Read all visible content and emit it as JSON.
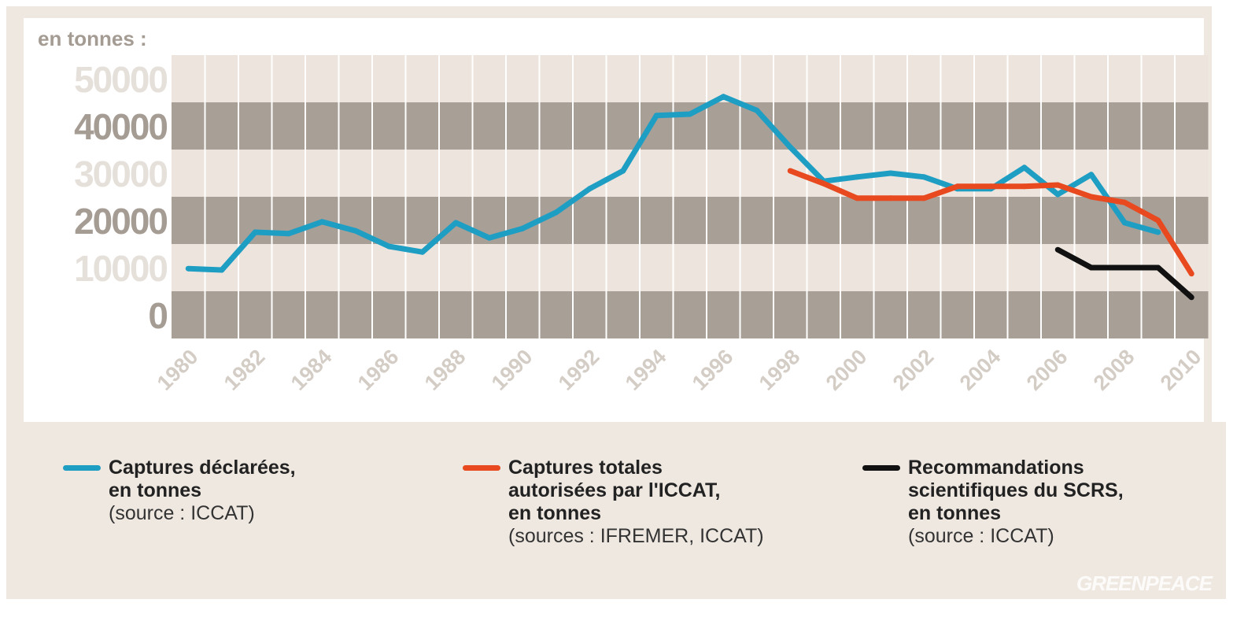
{
  "chart_data": {
    "type": "line",
    "ylabel": "en tonnes :",
    "ylim": [
      0,
      50000
    ],
    "yticks": [
      "50000",
      "40000",
      "30000",
      "20000",
      "10000",
      "0"
    ],
    "x": [
      1980,
      1981,
      1982,
      1983,
      1984,
      1985,
      1986,
      1987,
      1988,
      1989,
      1990,
      1991,
      1992,
      1993,
      1994,
      1995,
      1996,
      1997,
      1998,
      1999,
      2000,
      2001,
      2002,
      2003,
      2004,
      2005,
      2006,
      2007,
      2008,
      2009,
      2010
    ],
    "xtick_labels": [
      "1980",
      "1982",
      "1984",
      "1986",
      "1988",
      "1990",
      "1992",
      "1994",
      "1996",
      "1998",
      "2000",
      "2002",
      "2004",
      "2006",
      "2008",
      "2010"
    ],
    "grid": "alternating horizontal bands, vertical column lines",
    "legend_position": "bottom",
    "series": [
      {
        "name": "Captures déclarées, en tonnes",
        "source": "(source : ICCAT)",
        "color": "#1f9ec4",
        "values": [
          9800,
          9500,
          17500,
          17200,
          19700,
          17800,
          14500,
          13300,
          19500,
          16300,
          18300,
          21700,
          26700,
          30500,
          42200,
          42500,
          46200,
          43300,
          35500,
          28300,
          29200,
          30000,
          29200,
          26700,
          26700,
          31200,
          25500,
          29700,
          19500,
          17500,
          null
        ]
      },
      {
        "name": "Captures totales autorisées par l'ICCAT, en tonnes",
        "source": "(sources : IFREMER, ICCAT)",
        "color": "#e8491f",
        "values": [
          null,
          null,
          null,
          null,
          null,
          null,
          null,
          null,
          null,
          null,
          null,
          null,
          null,
          null,
          null,
          null,
          null,
          null,
          30500,
          27800,
          24700,
          24700,
          24700,
          27200,
          27200,
          27200,
          27500,
          25000,
          23800,
          20000,
          8700
        ]
      },
      {
        "name": "Recommandations scientifiques du SCRS, en tonnes",
        "source": "(source : ICCAT)",
        "color": "#111111",
        "values": [
          null,
          null,
          null,
          null,
          null,
          null,
          null,
          null,
          null,
          null,
          null,
          null,
          null,
          null,
          null,
          null,
          null,
          null,
          null,
          null,
          null,
          null,
          null,
          null,
          null,
          null,
          13800,
          10000,
          10000,
          10000,
          3700
        ]
      }
    ]
  },
  "legend": [
    {
      "line1": "Captures déclarées,",
      "line2": "en tonnes",
      "line3": "",
      "source": "(source : ICCAT)"
    },
    {
      "line1": "Captures totales",
      "line2": "autorisées par l'ICCAT,",
      "line3": "en tonnes",
      "source": "(sources : IFREMER, ICCAT)"
    },
    {
      "line1": "Recommandations",
      "line2": "scientifiques du SCRS,",
      "line3": "en tonnes",
      "source": "(source : ICCAT)"
    }
  ],
  "watermark": "GREENPEACE",
  "colors": {
    "band_light": "#ede5dd",
    "band_dark": "#a89f97",
    "panel": "#efe8e1"
  }
}
